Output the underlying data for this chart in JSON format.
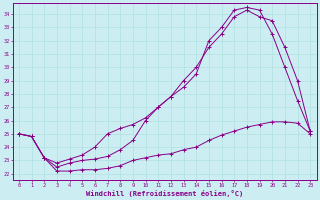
{
  "xlabel": "Windchill (Refroidissement éolien,°C)",
  "xlim": [
    -0.5,
    23.5
  ],
  "ylim": [
    21.5,
    34.8
  ],
  "yticks": [
    22,
    23,
    24,
    25,
    26,
    27,
    28,
    29,
    30,
    31,
    32,
    33,
    34
  ],
  "xticks": [
    0,
    1,
    2,
    3,
    4,
    5,
    6,
    7,
    8,
    9,
    10,
    11,
    12,
    13,
    14,
    15,
    16,
    17,
    18,
    19,
    20,
    21,
    22,
    23
  ],
  "background_color": "#cceef2",
  "grid_color": "#aaddde",
  "line_color": "#880088",
  "curve1_x": [
    0,
    1,
    2,
    3,
    4,
    5,
    6,
    7,
    8,
    9,
    10,
    11,
    12,
    13,
    14,
    15,
    16,
    17,
    18,
    19,
    20,
    21,
    22,
    23
  ],
  "curve1_y": [
    25.0,
    24.8,
    23.2,
    22.2,
    22.2,
    22.3,
    22.3,
    22.4,
    22.6,
    23.0,
    23.2,
    23.4,
    23.5,
    23.8,
    24.0,
    24.5,
    24.9,
    25.2,
    25.5,
    25.7,
    25.9,
    25.9,
    25.8,
    25.0
  ],
  "curve2_x": [
    0,
    1,
    2,
    3,
    4,
    5,
    6,
    7,
    8,
    9,
    10,
    11,
    12,
    13,
    14,
    15,
    16,
    17,
    18,
    19,
    20,
    21,
    22,
    23
  ],
  "curve2_y": [
    25.0,
    24.8,
    23.2,
    22.8,
    23.1,
    23.4,
    24.0,
    25.0,
    25.4,
    25.7,
    26.2,
    27.0,
    27.8,
    29.0,
    30.0,
    31.5,
    32.5,
    33.8,
    34.3,
    33.8,
    33.5,
    31.5,
    29.0,
    25.2
  ],
  "curve3_x": [
    0,
    1,
    2,
    3,
    4,
    5,
    6,
    7,
    8,
    9,
    10,
    11,
    12,
    13,
    14,
    15,
    16,
    17,
    18,
    19,
    20,
    21,
    22,
    23
  ],
  "curve3_y": [
    25.0,
    24.8,
    23.2,
    22.5,
    22.8,
    23.0,
    23.1,
    23.3,
    23.8,
    24.5,
    26.0,
    27.0,
    27.8,
    28.5,
    29.5,
    32.0,
    33.0,
    34.3,
    34.5,
    34.3,
    32.5,
    30.0,
    27.5,
    25.2
  ]
}
